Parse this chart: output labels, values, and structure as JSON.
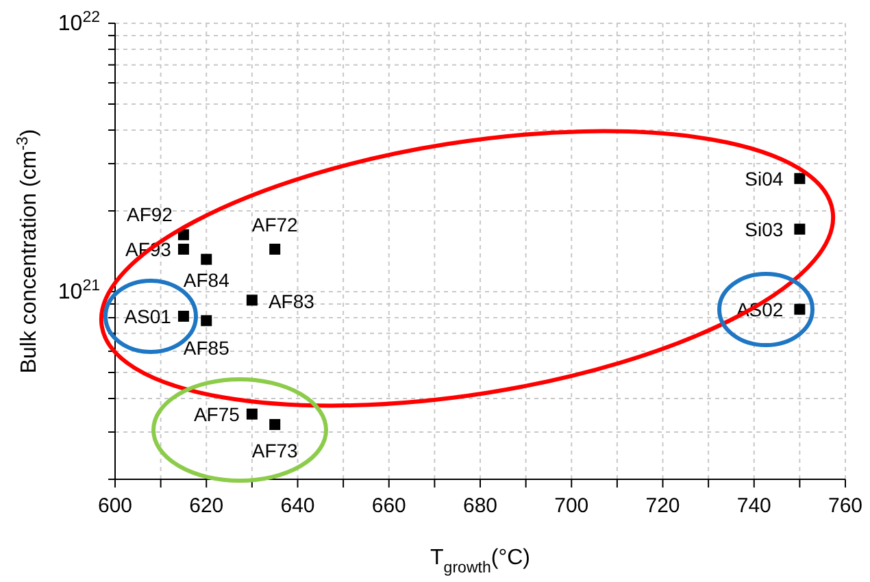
{
  "chart_data": {
    "type": "scatter",
    "xlabel": "T$_{growth}$(°C)",
    "ylabel": "Bulk concentration (cm$^{-3}$)",
    "x": [
      615,
      615,
      620,
      635,
      630,
      615,
      620,
      630,
      635,
      750,
      750,
      750
    ],
    "values": [
      1.63e+21,
      1.44e+21,
      1.32e+21,
      1.44e+21,
      9.3e+20,
      8.1e+20,
      7.8e+20,
      3.5e+20,
      3.2e+20,
      2.64e+21,
      1.71e+21,
      8.6e+20
    ],
    "color": "#000000",
    "marker": "square",
    "log": "y",
    "grid": true,
    "xlim": [
      600,
      760
    ],
    "xticks": [
      600,
      {
        "value": 610,
        "label": null
      },
      620,
      {
        "value": 630,
        "label": null
      },
      640,
      {
        "value": 650,
        "label": null
      },
      660,
      {
        "value": 670,
        "label": null
      },
      680,
      {
        "value": 690,
        "label": null
      },
      700,
      {
        "value": 710,
        "label": null
      },
      720,
      {
        "value": 730,
        "label": null
      },
      740,
      {
        "value": 750,
        "label": null
      },
      760
    ],
    "ylim": [
      2e+20,
      1e+22
    ],
    "yticks": [
      {
        "value": 2e+20,
        "label": null
      },
      {
        "value": 3e+20,
        "label": null
      },
      {
        "value": 4e+20,
        "label": null
      },
      {
        "value": 5e+20,
        "label": null
      },
      {
        "value": 6e+20,
        "label": null
      },
      {
        "value": 7e+20,
        "label": null
      },
      {
        "value": 8e+20,
        "label": null
      },
      {
        "value": 9e+20,
        "label": null
      },
      {
        "value": 1e+21,
        "label": "10$^{21}$"
      },
      {
        "value": 2e+21,
        "label": null
      },
      {
        "value": 3e+21,
        "label": null
      },
      {
        "value": 4e+21,
        "label": null
      },
      {
        "value": 5e+21,
        "label": null
      },
      {
        "value": 6e+21,
        "label": null
      },
      {
        "value": 7e+21,
        "label": null
      },
      {
        "value": 8e+21,
        "label": null
      },
      {
        "value": 9e+21,
        "label": null
      },
      {
        "value": 1e+22,
        "label": "10$^{22}$"
      }
    ],
    "annotations": [
      {
        "text": "AF92",
        "x": 615,
        "y": 1.63e+21
      },
      {
        "text": "AF93",
        "x": 615,
        "y": 1.44e+21
      },
      {
        "text": "AF84",
        "x": 620,
        "y": 1.32e+21
      },
      {
        "text": "AF72",
        "x": 635,
        "y": 1.44e+21
      },
      {
        "text": "AF83",
        "x": 630,
        "y": 9.3e+20
      },
      {
        "text": "AS01",
        "x": 615,
        "y": 8.1e+20
      },
      {
        "text": "AF85",
        "x": 620,
        "y": 7.8e+20
      },
      {
        "text": "AF75",
        "x": 630,
        "y": 3.5e+20
      },
      {
        "text": "AF73",
        "x": 635,
        "y": 3.2e+20
      },
      {
        "text": "Si04",
        "x": 750,
        "y": 2.64e+21
      },
      {
        "text": "Si03",
        "x": 750,
        "y": 1.71e+21
      },
      {
        "text": "AS02",
        "x": 750,
        "y": 8.6e+20
      }
    ]
  }
}
